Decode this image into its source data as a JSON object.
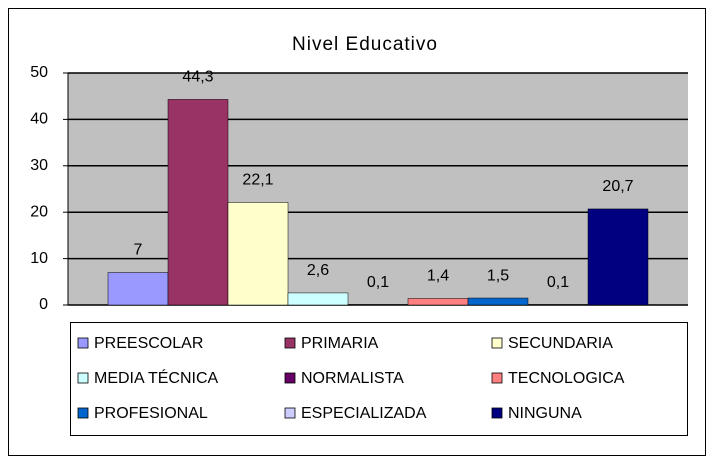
{
  "chart_data": {
    "type": "bar",
    "title": "Nivel Educativo",
    "series": [
      {
        "name": "PREESCOLAR",
        "color": "#9999ff",
        "values": [
          7
        ],
        "value_labels": [
          "7"
        ]
      },
      {
        "name": "PRIMARIA",
        "color": "#993366",
        "values": [
          44.3
        ],
        "value_labels": [
          "44,3"
        ]
      },
      {
        "name": "SECUNDARIA",
        "color": "#ffffcc",
        "values": [
          22.1
        ],
        "value_labels": [
          "22,1"
        ]
      },
      {
        "name": "MEDIA TÉCNICA",
        "color": "#ccffff",
        "values": [
          2.6
        ],
        "value_labels": [
          "2,6"
        ]
      },
      {
        "name": "NORMALISTA",
        "color": "#660066",
        "values": [
          0.1
        ],
        "value_labels": [
          "0,1"
        ]
      },
      {
        "name": "TECNOLOGICA",
        "color": "#ff8080",
        "values": [
          1.4
        ],
        "value_labels": [
          "1,4"
        ]
      },
      {
        "name": "PROFESIONAL",
        "color": "#0066cc",
        "values": [
          1.5
        ],
        "value_labels": [
          "1,5"
        ]
      },
      {
        "name": "ESPECIALIZADA",
        "color": "#ccccff",
        "values": [
          0.1
        ],
        "value_labels": [
          "0,1"
        ]
      },
      {
        "name": "NINGUNA",
        "color": "#000080",
        "values": [
          20.7
        ],
        "value_labels": [
          "20,7"
        ]
      }
    ],
    "ylim": [
      0,
      50
    ],
    "yticks": [
      0,
      10,
      20,
      30,
      40,
      50
    ],
    "grid": true,
    "legend": "bottom"
  }
}
